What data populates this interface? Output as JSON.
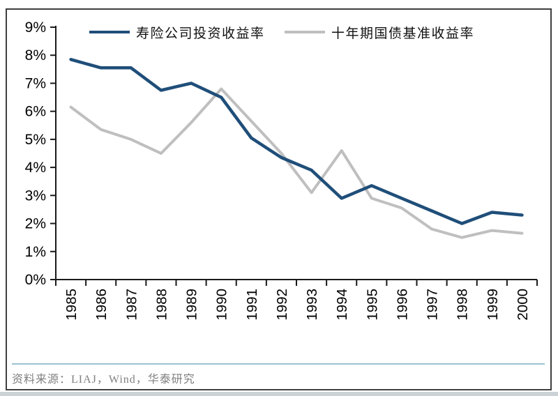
{
  "chart_data": {
    "type": "line",
    "categories": [
      "1985",
      "1986",
      "1987",
      "1988",
      "1989",
      "1990",
      "1991",
      "1992",
      "1993",
      "1994",
      "1995",
      "1996",
      "1997",
      "1998",
      "1999",
      "2000"
    ],
    "series": [
      {
        "name": "寿险公司投资收益率",
        "color": "#1F4E79",
        "values": [
          7.85,
          7.55,
          7.55,
          6.75,
          7.0,
          6.5,
          5.05,
          4.35,
          3.9,
          2.9,
          3.35,
          2.9,
          2.45,
          2.0,
          2.4,
          2.3
        ]
      },
      {
        "name": "十年期国债基准收益率",
        "color": "#BFBFBF",
        "values": [
          6.15,
          5.35,
          5.0,
          4.5,
          5.6,
          6.8,
          5.65,
          4.5,
          3.1,
          4.6,
          2.9,
          2.55,
          1.8,
          1.5,
          1.75,
          1.65
        ]
      }
    ],
    "ylim": [
      0,
      9
    ],
    "ytick_step": 1,
    "ytick_labels": [
      "0%",
      "1%",
      "2%",
      "3%",
      "4%",
      "5%",
      "6%",
      "7%",
      "8%",
      "9%"
    ],
    "grid": false,
    "legend_position": "top"
  },
  "footer": {
    "source_note": "资料来源：LIAJ，Wind，华泰研究"
  },
  "colors": {
    "axis": "#1a1a1a",
    "tick_label": "#000000",
    "frame_border": "#3f3f3f",
    "divider": "#9cc2d3",
    "source_text": "#7f7f7f",
    "series_1": "#1F4E79",
    "series_2": "#BFBFBF"
  }
}
